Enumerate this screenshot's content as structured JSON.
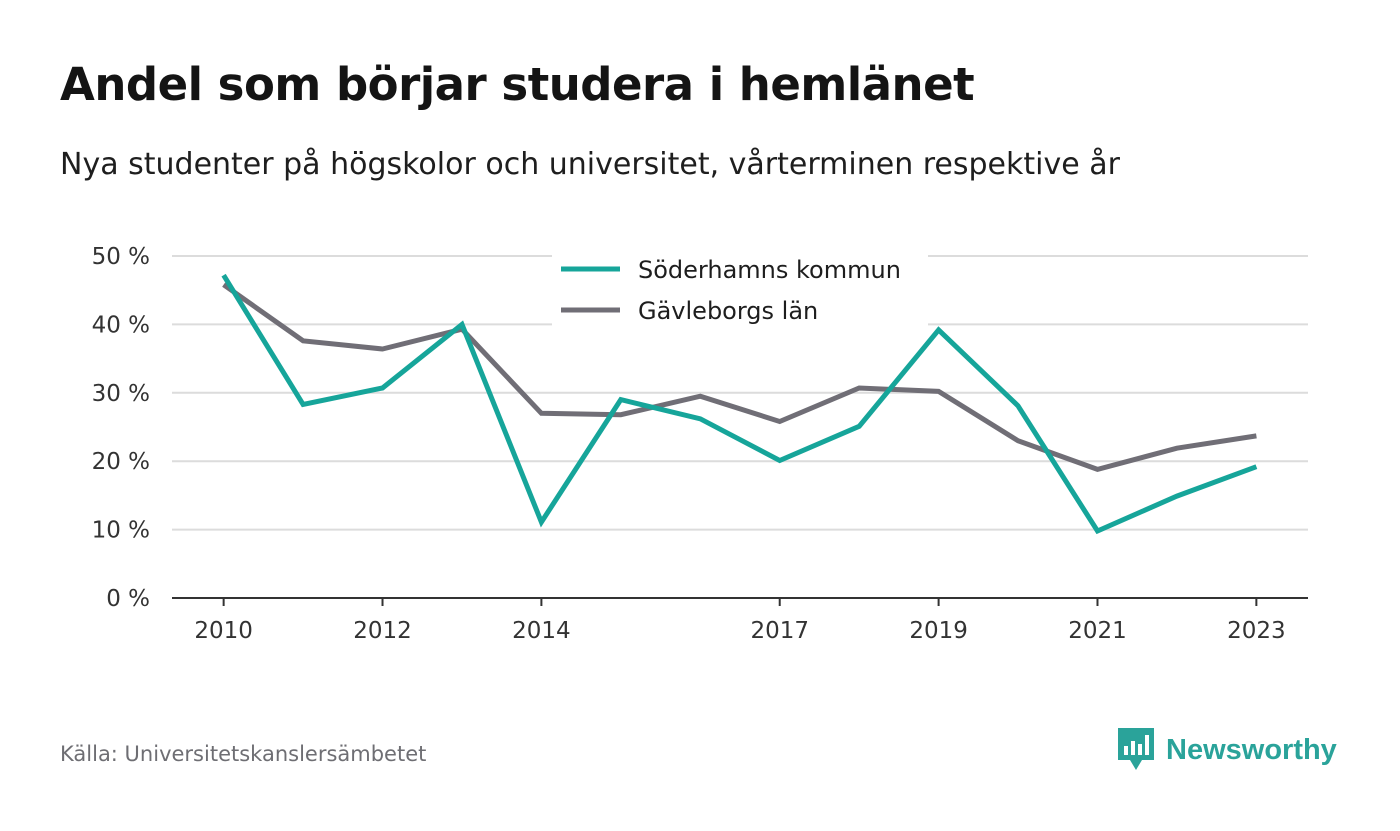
{
  "header": {
    "title": "Andel som börjar studera i hemlänet",
    "subtitle": "Nya studenter på högskolor och universitet, vårterminen respektive år"
  },
  "footer": {
    "source": "Källa: Universitetskanslersämbetet",
    "brand": "Newsworthy"
  },
  "colors": {
    "series_1": "#16a59a",
    "series_2": "#706e76",
    "grid": "#dcdcdc",
    "axis": "#333333",
    "brand": "#2aa39a"
  },
  "chart_data": {
    "type": "line",
    "title": "",
    "xlabel": "",
    "ylabel": "",
    "x": [
      2010,
      2011,
      2012,
      2013,
      2014,
      2015,
      2016,
      2017,
      2018,
      2019,
      2020,
      2021,
      2022,
      2023
    ],
    "x_tick_labels": [
      "2010",
      "2012",
      "2014",
      "2017",
      "2019",
      "2021",
      "2023"
    ],
    "y_ticks": [
      0,
      10,
      20,
      30,
      40,
      50
    ],
    "y_tick_labels": [
      "0 %",
      "10 %",
      "20 %",
      "30 %",
      "40 %",
      "50 %"
    ],
    "ylim": [
      0,
      50
    ],
    "grid": true,
    "legend_position": "top-center",
    "series": [
      {
        "name": "Söderhamns kommun",
        "color": "#16a59a",
        "values": [
          47.2,
          28.3,
          30.7,
          40.0,
          11.1,
          29.0,
          26.2,
          20.1,
          25.1,
          39.2,
          28.1,
          9.8,
          14.9,
          19.2
        ]
      },
      {
        "name": "Gävleborgs län",
        "color": "#706e76",
        "values": [
          45.8,
          37.6,
          36.4,
          39.3,
          27.0,
          26.8,
          29.5,
          25.8,
          30.7,
          30.2,
          23.0,
          18.8,
          21.9,
          23.7
        ]
      }
    ]
  }
}
